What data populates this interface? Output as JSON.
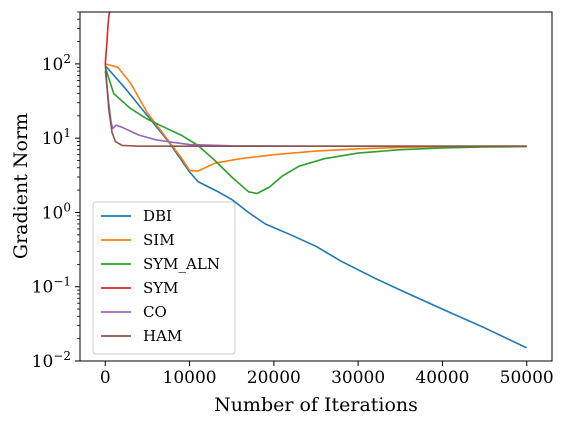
{
  "chart_data": {
    "type": "line",
    "xlabel": "Number of Iterations",
    "ylabel": "Gradient Norm",
    "xlim": [
      -3000,
      53000
    ],
    "ylim": [
      0.01,
      500
    ],
    "yscale": "log",
    "grid": false,
    "legend_position": "lower-left",
    "x_ticks": [
      0,
      10000,
      20000,
      30000,
      40000,
      50000
    ],
    "x_tick_labels": [
      "0",
      "10000",
      "20000",
      "30000",
      "40000",
      "50000"
    ],
    "y_ticks": [
      {
        "value": 100,
        "base": "10",
        "exp": "2"
      },
      {
        "value": 10,
        "base": "10",
        "exp": "1"
      },
      {
        "value": 1,
        "base": "10",
        "exp": "0"
      },
      {
        "value": 0.1,
        "base": "10",
        "exp": "−1"
      },
      {
        "value": 0.01,
        "base": "10",
        "exp": "−2"
      }
    ],
    "series": [
      {
        "name": "DBI",
        "color": "#1f77b4",
        "points": [
          [
            0,
            95
          ],
          [
            2500,
            45
          ],
          [
            5000,
            20
          ],
          [
            7500,
            9
          ],
          [
            10000,
            3.5
          ],
          [
            11000,
            2.6
          ],
          [
            13000,
            2.0
          ],
          [
            15000,
            1.5
          ],
          [
            17000,
            1.0
          ],
          [
            19000,
            0.7
          ],
          [
            22000,
            0.5
          ],
          [
            25000,
            0.35
          ],
          [
            28000,
            0.22
          ],
          [
            32000,
            0.13
          ],
          [
            36000,
            0.08
          ],
          [
            40000,
            0.05
          ],
          [
            45000,
            0.028
          ],
          [
            50000,
            0.015
          ]
        ]
      },
      {
        "name": "SIM",
        "color": "#ff7f0e",
        "points": [
          [
            0,
            100
          ],
          [
            1500,
            90
          ],
          [
            3000,
            55
          ],
          [
            5000,
            22
          ],
          [
            7000,
            11
          ],
          [
            9000,
            5.5
          ],
          [
            10000,
            3.7
          ],
          [
            11000,
            3.6
          ],
          [
            13000,
            4.6
          ],
          [
            16000,
            5.3
          ],
          [
            20000,
            6.0
          ],
          [
            25000,
            6.7
          ],
          [
            30000,
            7.2
          ],
          [
            35000,
            7.5
          ],
          [
            40000,
            7.7
          ],
          [
            45000,
            7.8
          ],
          [
            50000,
            7.8
          ]
        ]
      },
      {
        "name": "SYM_ALN",
        "color": "#2ca02c",
        "points": [
          [
            0,
            90
          ],
          [
            1000,
            40
          ],
          [
            3000,
            25
          ],
          [
            5000,
            18
          ],
          [
            7000,
            14
          ],
          [
            9000,
            11
          ],
          [
            11000,
            8
          ],
          [
            13000,
            5
          ],
          [
            15000,
            3
          ],
          [
            17000,
            1.9
          ],
          [
            18000,
            1.8
          ],
          [
            19500,
            2.2
          ],
          [
            21000,
            3.1
          ],
          [
            23000,
            4.2
          ],
          [
            26000,
            5.3
          ],
          [
            30000,
            6.3
          ],
          [
            35000,
            7.0
          ],
          [
            40000,
            7.4
          ],
          [
            45000,
            7.6
          ],
          [
            50000,
            7.7
          ]
        ]
      },
      {
        "name": "SYM",
        "color": "#d62728",
        "points": [
          [
            0,
            100
          ],
          [
            100,
            140
          ],
          [
            200,
            200
          ],
          [
            300,
            300
          ],
          [
            400,
            420
          ],
          [
            500,
            500
          ]
        ]
      },
      {
        "name": "CO",
        "color": "#9467bd",
        "points": [
          [
            0,
            80
          ],
          [
            400,
            30
          ],
          [
            700,
            16
          ],
          [
            900,
            13.5
          ],
          [
            1300,
            15
          ],
          [
            2000,
            14
          ],
          [
            4000,
            11
          ],
          [
            6000,
            9.5
          ],
          [
            8000,
            8.8
          ],
          [
            10000,
            8.2
          ],
          [
            15000,
            7.9
          ],
          [
            25000,
            7.8
          ],
          [
            50000,
            7.8
          ]
        ]
      },
      {
        "name": "HAM",
        "color": "#8c564b",
        "points": [
          [
            0,
            100
          ],
          [
            400,
            25
          ],
          [
            800,
            12
          ],
          [
            1200,
            9
          ],
          [
            2000,
            8
          ],
          [
            4000,
            7.8
          ],
          [
            10000,
            7.8
          ],
          [
            50000,
            7.8
          ]
        ]
      }
    ]
  }
}
